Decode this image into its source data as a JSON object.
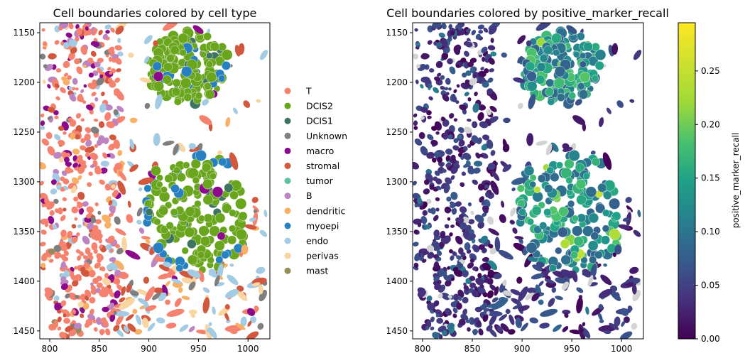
{
  "chart_data": [
    {
      "type": "scatter",
      "title": "Cell boundaries colored by cell type",
      "xlabel": "",
      "ylabel": "",
      "xlim": [
        790,
        1022
      ],
      "ylim": [
        1458,
        1140
      ],
      "xticks": [
        "800",
        "850",
        "900",
        "950",
        "1000"
      ],
      "yticks": [
        "1150",
        "1200",
        "1250",
        "1300",
        "1350",
        "1400",
        "1450"
      ],
      "legend_position": "right",
      "legend": [
        {
          "label": "T",
          "color": "#f5826f"
        },
        {
          "label": "DCIS2",
          "color": "#6aa51e"
        },
        {
          "label": "DCIS1",
          "color": "#3d7560"
        },
        {
          "label": "Unknown",
          "color": "#7f7f7f"
        },
        {
          "label": "macro",
          "color": "#8b0a8b"
        },
        {
          "label": "stromal",
          "color": "#d1583e"
        },
        {
          "label": "tumor",
          "color": "#5fc29e"
        },
        {
          "label": "B",
          "color": "#bd84c2"
        },
        {
          "label": "dendritic",
          "color": "#f8b066"
        },
        {
          "label": "myoepi",
          "color": "#2781c1"
        },
        {
          "label": "endo",
          "color": "#a3cbe3"
        },
        {
          "label": "perivas",
          "color": "#f9d5a2"
        },
        {
          "label": "mast",
          "color": "#968b5b"
        }
      ],
      "regions": [
        {
          "type": "DCIS2",
          "x": 940,
          "y": 1185,
          "rx": 42,
          "ry": 38
        },
        {
          "type": "DCIS2",
          "x": 948,
          "y": 1330,
          "rx": 48,
          "ry": 52
        },
        {
          "type": "myoepi",
          "x": 948,
          "y": 1330,
          "rx": 56,
          "ry": 62
        }
      ]
    },
    {
      "type": "scatter",
      "title": "Cell boundaries colored by positive_marker_recall",
      "xlabel": "",
      "ylabel": "",
      "xlim": [
        790,
        1022
      ],
      "ylim": [
        1458,
        1140
      ],
      "xticks": [
        "800",
        "850",
        "900",
        "950",
        "1000"
      ],
      "yticks": [
        "1150",
        "1200",
        "1250",
        "1300",
        "1350",
        "1400",
        "1450"
      ],
      "colorbar": {
        "label": "positive_marker_recall",
        "colormap": "viridis",
        "range": [
          0.0,
          0.295
        ],
        "ticks": [
          "0.00",
          "0.05",
          "0.10",
          "0.15",
          "0.20",
          "0.25"
        ]
      },
      "missing_color": "#d3d3d3"
    }
  ]
}
